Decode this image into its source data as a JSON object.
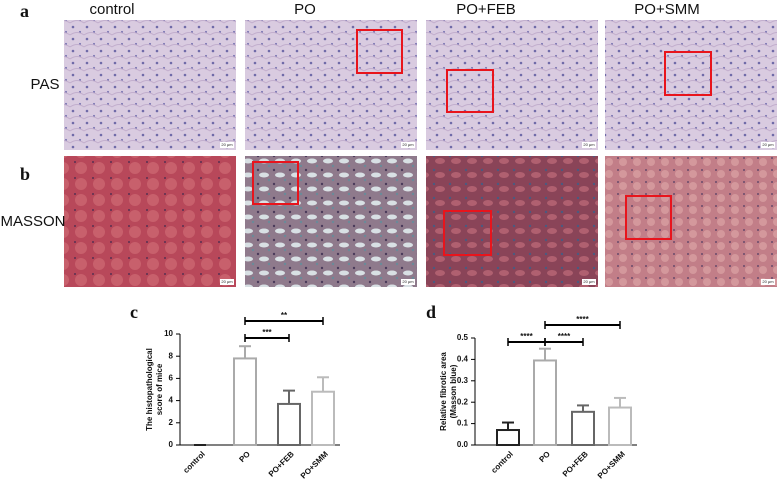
{
  "panel_labels": [
    "a",
    "b",
    "c",
    "d"
  ],
  "columns": [
    "control",
    "PO",
    "PO+FEB",
    "PO+SMM"
  ],
  "rows": [
    "PAS",
    "MASSON"
  ],
  "scale_bar_label": "20 μm",
  "chart_data": [
    {
      "type": "bar",
      "ylabel": [
        "The histopathological",
        "score of mice"
      ],
      "categories": [
        "control",
        "PO",
        "PO+FEB",
        "PO+SMM"
      ],
      "values": [
        0,
        7.8,
        3.7,
        4.8
      ],
      "errors": [
        0,
        1.1,
        1.2,
        1.3
      ],
      "colors": [
        "#222222",
        "#aaaaaa",
        "#666666",
        "#bbbbbb"
      ],
      "ylim": [
        0,
        10
      ],
      "yticks": [
        0,
        2,
        4,
        6,
        8,
        10
      ],
      "annotations": [
        {
          "from": "PO",
          "to": "PO+FEB",
          "label": "***"
        },
        {
          "from": "PO",
          "to": "PO+SMM",
          "label": "**"
        }
      ]
    },
    {
      "type": "bar",
      "ylabel": [
        "Relative fibrotic area",
        "(Masson blue)"
      ],
      "categories": [
        "control",
        "PO",
        "PO+FEB",
        "PO+SMM"
      ],
      "values": [
        0.07,
        0.395,
        0.155,
        0.175
      ],
      "errors": [
        0.035,
        0.055,
        0.03,
        0.045
      ],
      "colors": [
        "#222222",
        "#aaaaaa",
        "#666666",
        "#bbbbbb"
      ],
      "ylim": [
        0,
        0.5
      ],
      "yticks": [
        {
          "value": 0,
          "label": "0.0"
        },
        0.1,
        0.2,
        0.3,
        0.4,
        0.5
      ],
      "annotations": [
        {
          "from": "control",
          "to": "PO",
          "label": "****"
        },
        {
          "from": "PO",
          "to": "PO+FEB",
          "label": "****"
        },
        {
          "from": "PO",
          "to": "PO+SMM",
          "label": "****"
        }
      ]
    }
  ]
}
